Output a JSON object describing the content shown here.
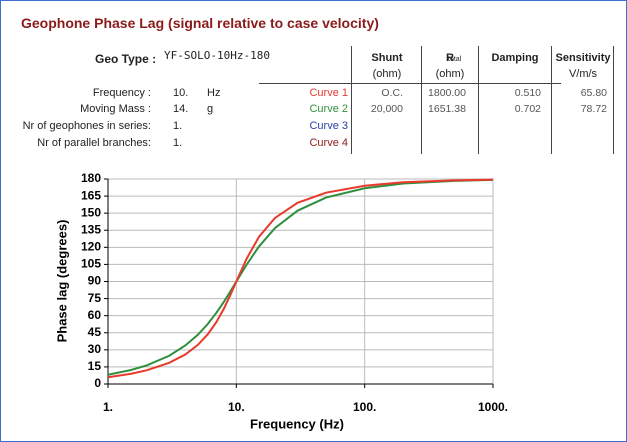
{
  "header": {
    "title": "Geophone Phase Lag (signal relative to case velocity)",
    "geo_type_label": "Geo Type :",
    "geo_type": "YF-SOLO-10Hz-180"
  },
  "params": [
    {
      "label": "Frequency :",
      "value": "10.",
      "unit": "Hz"
    },
    {
      "label": "Moving Mass :",
      "value": "14.",
      "unit": "g"
    },
    {
      "label": "Nr of geophones in series:",
      "value": "1."
    },
    {
      "label": "Nr of parallel branches:",
      "value": "1."
    }
  ],
  "table": {
    "columns": [
      {
        "line1": "Shunt",
        "line2": "(ohm)"
      },
      {
        "line1": "R",
        "sub": "total",
        "line2": "(ohm)"
      },
      {
        "line1": "Damping"
      },
      {
        "line1": "Sensitivity",
        "line2": "V/m/s"
      }
    ],
    "rows": [
      {
        "cells": [
          "O.C.",
          "1800.00",
          "0.510",
          "65.80"
        ]
      },
      {
        "cells": [
          "20,000",
          "1651.38",
          "0.702",
          "78.72"
        ]
      },
      {
        "curve": "Curve 3",
        "cells": []
      },
      {
        "curve": "Curve 4",
        "cells": []
      }
    ]
  },
  "chart_data": {
    "type": "line",
    "x_label": "Frequency (Hz)",
    "y_label": "Phase lag (degrees)",
    "xscale": "log",
    "grid": true,
    "x": [
      1,
      1.5,
      2,
      3,
      4,
      5,
      6,
      7,
      8,
      9,
      10,
      12,
      15,
      20,
      30,
      50,
      100,
      200,
      500,
      1000
    ],
    "series": [
      {
        "name": "Curve 1",
        "color": "#e8392c",
        "values": [
          5.9,
          8.9,
          12.0,
          18.6,
          25.9,
          34.2,
          43.7,
          54.5,
          66.2,
          78.3,
          90,
          109.8,
          129.2,
          145.8,
          159.1,
          168.0,
          174.1,
          177.1,
          178.8,
          179.4
        ]
      },
      {
        "name": "Curve 2",
        "color": "#2f8f3e",
        "values": [
          8.1,
          12.2,
          16.3,
          24.8,
          33.8,
          43.1,
          52.8,
          62.6,
          72.2,
          81.4,
          90,
          104.6,
          120.7,
          136.9,
          152.2,
          163.7,
          171.9,
          176.0,
          178.4,
          179.2
        ]
      }
    ],
    "xlim": [
      1,
      1000
    ],
    "xticks": [
      {
        "value": 1,
        "label": "1."
      },
      {
        "value": 10,
        "label": "10."
      },
      {
        "value": 100,
        "label": "100."
      },
      {
        "value": 1000,
        "label": "1000."
      }
    ],
    "ylim": [
      0,
      180
    ],
    "yticks": [
      0,
      15,
      30,
      45,
      60,
      75,
      90,
      105,
      120,
      135,
      150,
      165,
      180
    ]
  }
}
